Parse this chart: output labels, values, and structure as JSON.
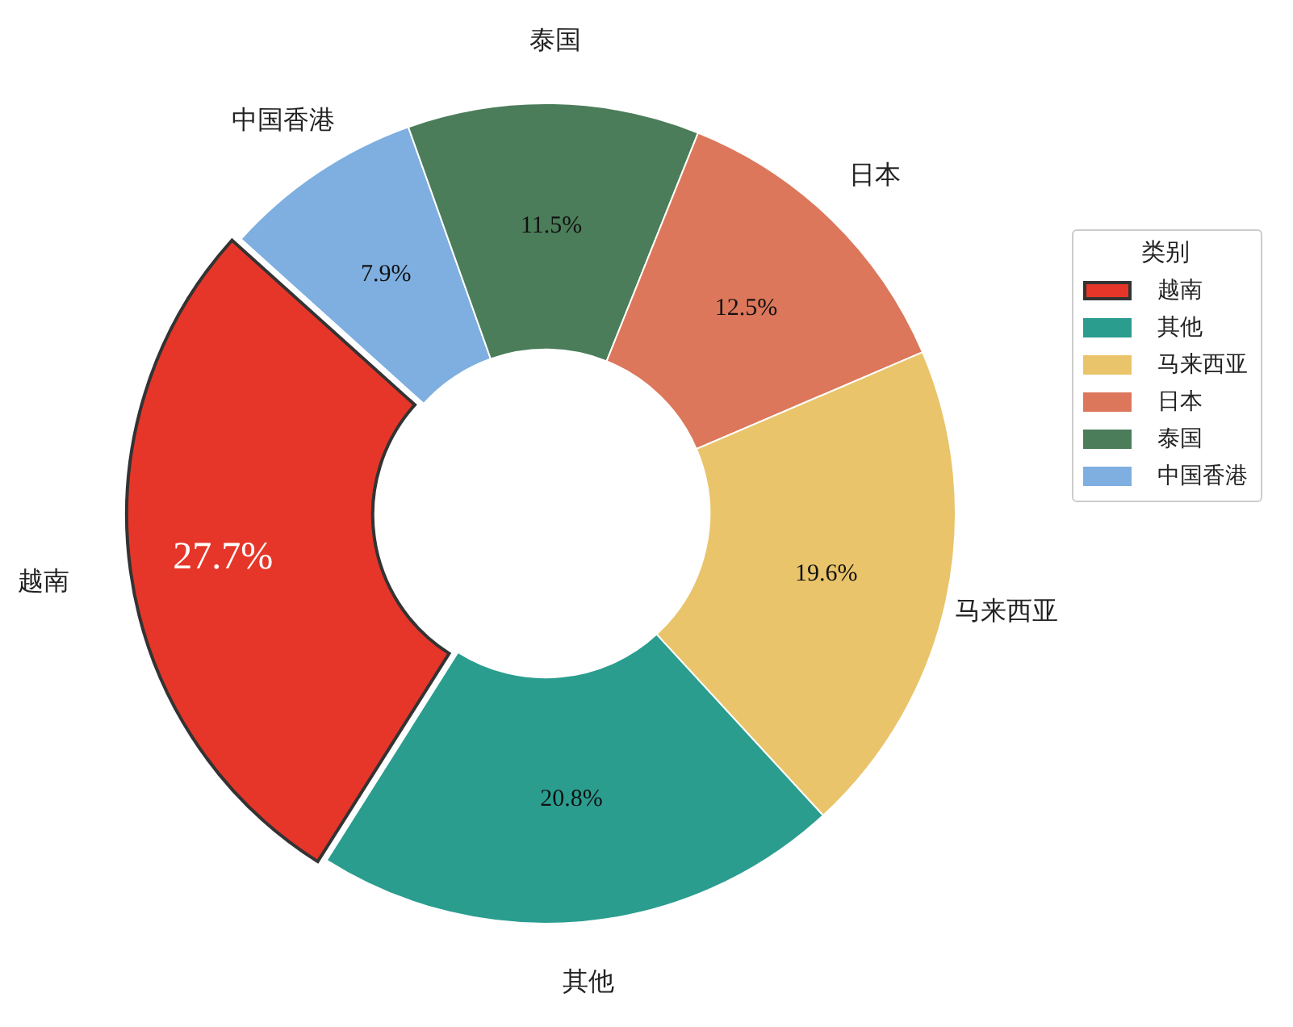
{
  "chart_data": {
    "type": "donut",
    "legend_title": "类别",
    "legend": "right",
    "categories": [
      "越南",
      "其他",
      "马来西亚",
      "日本",
      "泰国",
      "中国香港"
    ],
    "values": [
      27.7,
      20.8,
      19.6,
      12.5,
      11.5,
      7.9
    ],
    "colors": [
      "#e63629",
      "#2a9d8f",
      "#e9c46a",
      "#dc775b",
      "#4b7d5a",
      "#7eafe0"
    ],
    "value_labels": [
      "27.7%",
      "20.8%",
      "19.6%",
      "12.5%",
      "11.5%",
      "7.9%"
    ]
  }
}
